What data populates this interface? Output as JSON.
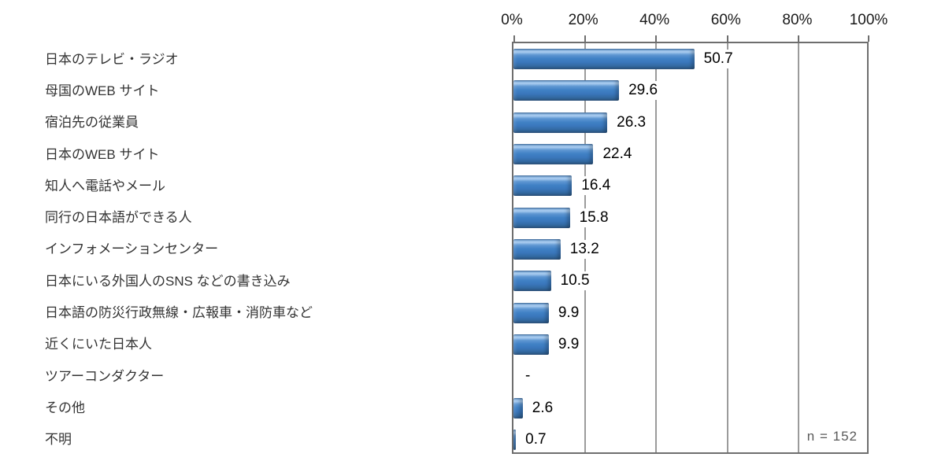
{
  "chart_data": {
    "type": "bar",
    "orientation": "horizontal",
    "title": "",
    "xlabel": "",
    "ylabel": "",
    "xlim": [
      0,
      100
    ],
    "grid": "vertical",
    "x_ticks": [
      "0%",
      "20%",
      "40%",
      "60%",
      "80%",
      "100%"
    ],
    "x_tick_values": [
      0,
      20,
      40,
      60,
      80,
      100
    ],
    "categories": [
      "日本のテレビ・ラジオ",
      "母国のWEB サイト",
      "宿泊先の従業員",
      "日本のWEB サイト",
      "知人へ電話やメール",
      "同行の日本語ができる人",
      "インフォメーションセンター",
      "日本にいる外国人のSNS などの書き込み",
      "日本語の防災行政無線・広報車・消防車など",
      "近くにいた日本人",
      "ツアーコンダクター",
      "その他",
      "不明"
    ],
    "values": [
      50.7,
      29.6,
      26.3,
      22.4,
      16.4,
      15.8,
      13.2,
      10.5,
      9.9,
      9.9,
      null,
      2.6,
      0.7
    ],
    "value_labels": [
      "50.7",
      "29.6",
      "26.3",
      "22.4",
      "16.4",
      "15.8",
      "13.2",
      "10.5",
      "9.9",
      "9.9",
      "-",
      "2.6",
      "0.7"
    ],
    "annotation": "n = 152",
    "colors": {
      "bar": "#3a77bc",
      "gridline": "#9b9b9b",
      "plot_border": "#6e6e6e",
      "value_label_text": "#000000",
      "category_text": "#333333",
      "annotation_text": "#595959",
      "background": "#ffffff"
    },
    "legend": null
  }
}
